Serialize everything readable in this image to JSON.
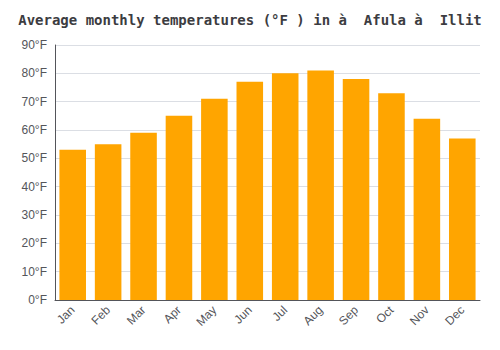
{
  "chart_data": {
    "type": "bar",
    "title": "Average monthly temperatures (°F ) in à  Afula à  Illit",
    "categories": [
      "Jan",
      "Feb",
      "Mar",
      "Apr",
      "May",
      "Jun",
      "Jul",
      "Aug",
      "Sep",
      "Oct",
      "Nov",
      "Dec"
    ],
    "values": [
      53,
      55,
      59,
      65,
      71,
      77,
      80,
      81,
      78,
      73,
      64,
      57
    ],
    "color": "#FFA500",
    "ylim": [
      0,
      90
    ],
    "yticks": [
      {
        "value": 0,
        "label": "0°F"
      },
      {
        "value": 10,
        "label": "10°F"
      },
      {
        "value": 20,
        "label": "20°F"
      },
      {
        "value": 30,
        "label": "30°F"
      },
      {
        "value": 40,
        "label": "40°F"
      },
      {
        "value": 50,
        "label": "50°F"
      },
      {
        "value": 60,
        "label": "60°F"
      },
      {
        "value": 70,
        "label": "70°F"
      },
      {
        "value": 80,
        "label": "80°F"
      },
      {
        "value": 90,
        "label": "90°F"
      }
    ],
    "grid": true
  }
}
